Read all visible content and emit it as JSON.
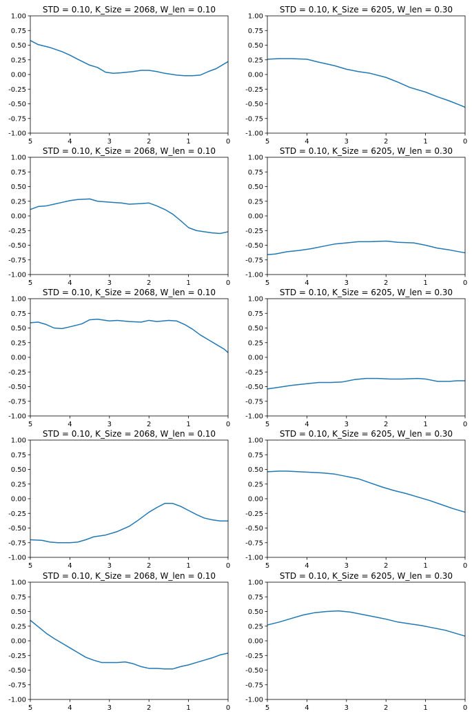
{
  "chart_data": [
    {
      "type": "line",
      "title": "STD = 0.10, K_Size = 2068, W_len = 0.10",
      "xlim": [
        5,
        0
      ],
      "ylim": [
        -1,
        1
      ],
      "xticks": [
        "5",
        "4",
        "3",
        "2",
        "1",
        "0"
      ],
      "yticks": [
        "1.00",
        "0.75",
        "0.50",
        "0.25",
        "0.00",
        "-0.25",
        "-0.50",
        "-0.75",
        "-1.00"
      ],
      "color": "#1f77b4",
      "x": [
        5,
        4.8,
        4.5,
        4.2,
        4.0,
        3.8,
        3.5,
        3.3,
        3.1,
        2.9,
        2.7,
        2.4,
        2.2,
        2.0,
        1.8,
        1.6,
        1.3,
        1.1,
        0.9,
        0.7,
        0.5,
        0.3,
        0.1,
        0
      ],
      "y": [
        0.58,
        0.51,
        0.46,
        0.39,
        0.33,
        0.26,
        0.16,
        0.12,
        0.04,
        0.02,
        0.03,
        0.05,
        0.07,
        0.07,
        0.05,
        0.02,
        -0.01,
        -0.02,
        -0.02,
        -0.01,
        0.05,
        0.1,
        0.18,
        0.22
      ]
    },
    {
      "type": "line",
      "title": "STD = 0.10, K_Size = 6205, W_len = 0.30",
      "xlim": [
        5,
        0
      ],
      "ylim": [
        -1,
        1
      ],
      "xticks": [
        "5",
        "4",
        "3",
        "2",
        "1",
        "0"
      ],
      "yticks": [
        "1.00",
        "0.75",
        "0.50",
        "0.25",
        "0.00",
        "-0.25",
        "-0.50",
        "-0.75",
        "-1.00"
      ],
      "color": "#1f77b4",
      "x": [
        5,
        4.7,
        4.4,
        4.0,
        3.7,
        3.3,
        3.0,
        2.7,
        2.4,
        2.0,
        1.7,
        1.4,
        1.0,
        0.7,
        0.4,
        0.1,
        0
      ],
      "y": [
        0.26,
        0.27,
        0.27,
        0.26,
        0.21,
        0.15,
        0.09,
        0.05,
        0.02,
        -0.05,
        -0.13,
        -0.22,
        -0.3,
        -0.38,
        -0.45,
        -0.53,
        -0.56
      ]
    },
    {
      "type": "line",
      "title": "STD = 0.10, K_Size = 2068, W_len = 0.10",
      "xlim": [
        5,
        0
      ],
      "ylim": [
        -1,
        1
      ],
      "xticks": [
        "5",
        "4",
        "3",
        "2",
        "1",
        "0"
      ],
      "yticks": [
        "1.00",
        "0.75",
        "0.50",
        "0.25",
        "0.00",
        "-0.25",
        "-0.50",
        "-0.75",
        "-1.00"
      ],
      "color": "#1f77b4",
      "x": [
        5,
        4.8,
        4.6,
        4.4,
        4.2,
        4.0,
        3.8,
        3.5,
        3.3,
        3.1,
        2.9,
        2.7,
        2.5,
        2.2,
        2.0,
        1.8,
        1.6,
        1.4,
        1.2,
        1.0,
        0.8,
        0.6,
        0.4,
        0.2,
        0
      ],
      "y": [
        0.11,
        0.16,
        0.17,
        0.2,
        0.23,
        0.26,
        0.28,
        0.29,
        0.25,
        0.24,
        0.23,
        0.22,
        0.2,
        0.21,
        0.22,
        0.17,
        0.11,
        0.03,
        -0.08,
        -0.2,
        -0.25,
        -0.27,
        -0.29,
        -0.3,
        -0.27
      ]
    },
    {
      "type": "line",
      "title": "STD = 0.10, K_Size = 6205, W_len = 0.30",
      "xlim": [
        5,
        0
      ],
      "ylim": [
        -1,
        1
      ],
      "xticks": [
        "5",
        "4",
        "3",
        "2",
        "1",
        "0"
      ],
      "yticks": [
        "1.00",
        "0.75",
        "0.50",
        "0.25",
        "0.00",
        "-0.25",
        "-0.50",
        "-0.75",
        "-1.00"
      ],
      "color": "#1f77b4",
      "x": [
        5,
        4.8,
        4.5,
        4.2,
        3.9,
        3.6,
        3.3,
        3.0,
        2.7,
        2.4,
        2.0,
        1.7,
        1.3,
        1.0,
        0.7,
        0.4,
        0
      ],
      "y": [
        -0.66,
        -0.65,
        -0.61,
        -0.59,
        -0.56,
        -0.52,
        -0.48,
        -0.46,
        -0.44,
        -0.44,
        -0.43,
        -0.45,
        -0.46,
        -0.5,
        -0.55,
        -0.58,
        -0.63
      ]
    },
    {
      "type": "line",
      "title": "STD = 0.10, K_Size = 2068, W_len = 0.10",
      "xlim": [
        5,
        0
      ],
      "ylim": [
        -1,
        1
      ],
      "xticks": [
        "5",
        "4",
        "3",
        "2",
        "1",
        "0"
      ],
      "yticks": [
        "1.00",
        "0.75",
        "0.50",
        "0.25",
        "0.00",
        "-0.25",
        "-0.50",
        "-0.75",
        "-1.00"
      ],
      "color": "#1f77b4",
      "x": [
        5,
        4.8,
        4.6,
        4.4,
        4.2,
        4.0,
        3.7,
        3.5,
        3.3,
        3.0,
        2.8,
        2.5,
        2.2,
        2.0,
        1.8,
        1.5,
        1.3,
        1.1,
        0.9,
        0.7,
        0.5,
        0.3,
        0.1,
        0
      ],
      "y": [
        0.59,
        0.6,
        0.56,
        0.5,
        0.49,
        0.52,
        0.57,
        0.64,
        0.65,
        0.62,
        0.63,
        0.61,
        0.6,
        0.63,
        0.61,
        0.63,
        0.62,
        0.56,
        0.48,
        0.38,
        0.3,
        0.22,
        0.14,
        0.08
      ]
    },
    {
      "type": "line",
      "title": "STD = 0.10, K_Size = 6205, W_len = 0.30",
      "xlim": [
        5,
        0
      ],
      "ylim": [
        -1,
        1
      ],
      "xticks": [
        "5",
        "4",
        "3",
        "2",
        "1",
        "0"
      ],
      "yticks": [
        "1.00",
        "0.75",
        "0.50",
        "0.25",
        "0.00",
        "-0.25",
        "-0.50",
        "-0.75",
        "-1.00"
      ],
      "color": "#1f77b4",
      "x": [
        5,
        4.7,
        4.4,
        4.0,
        3.7,
        3.4,
        3.1,
        2.8,
        2.5,
        2.2,
        1.9,
        1.6,
        1.2,
        1.0,
        0.7,
        0.4,
        0.2,
        0
      ],
      "y": [
        -0.54,
        -0.51,
        -0.48,
        -0.45,
        -0.43,
        -0.43,
        -0.42,
        -0.38,
        -0.36,
        -0.36,
        -0.37,
        -0.37,
        -0.36,
        -0.37,
        -0.41,
        -0.41,
        -0.4,
        -0.4
      ]
    },
    {
      "type": "line",
      "title": "STD = 0.10, K_Size = 2068, W_len = 0.10",
      "xlim": [
        5,
        0
      ],
      "ylim": [
        -1,
        1
      ],
      "xticks": [
        "5",
        "4",
        "3",
        "2",
        "1",
        "0"
      ],
      "yticks": [
        "1.00",
        "0.75",
        "0.50",
        "0.25",
        "0.00",
        "-0.25",
        "-0.50",
        "-0.75",
        "-1.00"
      ],
      "color": "#1f77b4",
      "x": [
        5,
        4.7,
        4.5,
        4.3,
        4.0,
        3.8,
        3.6,
        3.4,
        3.1,
        2.8,
        2.5,
        2.3,
        2.0,
        1.8,
        1.6,
        1.4,
        1.2,
        1.0,
        0.8,
        0.6,
        0.4,
        0.2,
        0
      ],
      "y": [
        -0.7,
        -0.71,
        -0.74,
        -0.75,
        -0.75,
        -0.74,
        -0.7,
        -0.65,
        -0.62,
        -0.56,
        -0.47,
        -0.38,
        -0.23,
        -0.15,
        -0.08,
        -0.08,
        -0.13,
        -0.2,
        -0.27,
        -0.33,
        -0.36,
        -0.38,
        -0.38
      ]
    },
    {
      "type": "line",
      "title": "STD = 0.10, K_Size = 6205, W_len = 0.30",
      "xlim": [
        5,
        0
      ],
      "ylim": [
        -1,
        1
      ],
      "xticks": [
        "5",
        "4",
        "3",
        "2",
        "1",
        "0"
      ],
      "yticks": [
        "1.00",
        "0.75",
        "0.50",
        "0.25",
        "0.00",
        "-0.25",
        "-0.50",
        "-0.75",
        "-1.00"
      ],
      "color": "#1f77b4",
      "x": [
        5,
        4.7,
        4.5,
        4.2,
        3.9,
        3.6,
        3.3,
        3.0,
        2.7,
        2.4,
        2.1,
        1.8,
        1.5,
        1.2,
        0.9,
        0.6,
        0.3,
        0
      ],
      "y": [
        0.46,
        0.47,
        0.47,
        0.46,
        0.45,
        0.44,
        0.42,
        0.38,
        0.34,
        0.27,
        0.2,
        0.14,
        0.09,
        0.03,
        -0.03,
        -0.1,
        -0.17,
        -0.23
      ]
    },
    {
      "type": "line",
      "title": "STD = 0.10, K_Size = 2068, W_len = 0.10",
      "xlim": [
        5,
        0
      ],
      "ylim": [
        -1,
        1
      ],
      "xticks": [
        "5",
        "4",
        "3",
        "2",
        "1",
        "0"
      ],
      "yticks": [
        "1.00",
        "0.75",
        "0.50",
        "0.25",
        "0.00",
        "-0.25",
        "-0.50",
        "-0.75",
        "-1.00"
      ],
      "color": "#1f77b4",
      "x": [
        5,
        4.8,
        4.6,
        4.4,
        4.2,
        4.0,
        3.8,
        3.6,
        3.4,
        3.2,
        3.0,
        2.8,
        2.6,
        2.4,
        2.2,
        2.0,
        1.8,
        1.6,
        1.4,
        1.2,
        1.0,
        0.8,
        0.6,
        0.4,
        0.2,
        0
      ],
      "y": [
        0.35,
        0.24,
        0.13,
        0.04,
        -0.04,
        -0.12,
        -0.2,
        -0.28,
        -0.33,
        -0.37,
        -0.37,
        -0.37,
        -0.36,
        -0.39,
        -0.44,
        -0.47,
        -0.47,
        -0.48,
        -0.48,
        -0.44,
        -0.41,
        -0.37,
        -0.33,
        -0.29,
        -0.24,
        -0.21
      ]
    },
    {
      "type": "line",
      "title": "STD = 0.10, K_Size = 6205, W_len = 0.30",
      "xlim": [
        5,
        0
      ],
      "ylim": [
        -1,
        1
      ],
      "xticks": [
        "5",
        "4",
        "3",
        "2",
        "1",
        "0"
      ],
      "yticks": [
        "1.00",
        "0.75",
        "0.50",
        "0.25",
        "0.00",
        "-0.25",
        "-0.50",
        "-0.75",
        "-1.00"
      ],
      "color": "#1f77b4",
      "x": [
        5,
        4.7,
        4.4,
        4.1,
        3.8,
        3.5,
        3.2,
        2.9,
        2.6,
        2.3,
        2.0,
        1.7,
        1.4,
        1.1,
        0.8,
        0.5,
        0.2,
        0
      ],
      "y": [
        0.27,
        0.32,
        0.38,
        0.44,
        0.48,
        0.5,
        0.51,
        0.49,
        0.45,
        0.41,
        0.37,
        0.32,
        0.29,
        0.26,
        0.22,
        0.18,
        0.12,
        0.08
      ]
    }
  ]
}
